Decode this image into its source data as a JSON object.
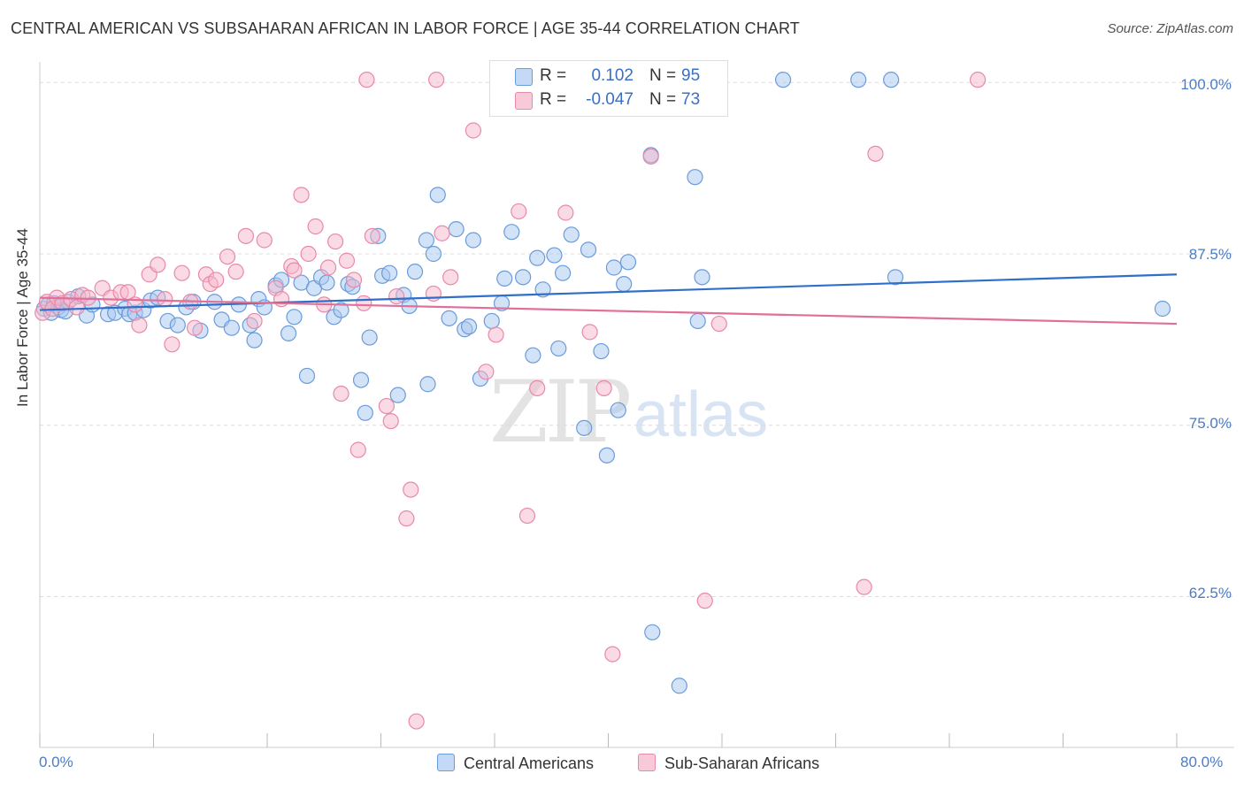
{
  "title": "CENTRAL AMERICAN VS SUBSAHARAN AFRICAN IN LABOR FORCE | AGE 35-44 CORRELATION CHART",
  "source": "Source: ZipAtlas.com",
  "watermark": {
    "zip": "ZIP",
    "atlas": "atlas"
  },
  "legend_top": {
    "r_label": "R =",
    "n_label": "N =",
    "rows": [
      {
        "r": "0.102",
        "n": "95"
      },
      {
        "r": "-0.047",
        "n": "73"
      }
    ]
  },
  "colors": {
    "blue_fill": "#a8c8ef",
    "blue_stroke": "#6a9bdc",
    "blue_line": "#2f6fc9",
    "pink_fill": "#f5b8cc",
    "pink_stroke": "#e889a8",
    "pink_line": "#e0709a",
    "grid": "#dcdcdc",
    "axis_text": "#4a7cc7"
  },
  "chart_data": {
    "type": "scatter",
    "title": "CENTRAL AMERICAN VS SUBSAHARAN AFRICAN IN LABOR FORCE | AGE 35-44 CORRELATION CHART",
    "xlabel": "",
    "ylabel": "In Labor Force | Age 35-44",
    "xlim": [
      0,
      80
    ],
    "ylim": [
      51.5,
      101.5
    ],
    "x_tick_labels": [
      "0.0%",
      "80.0%"
    ],
    "y_ticks": [
      {
        "value": 100,
        "label": "100.0%"
      },
      {
        "value": 87.5,
        "label": "87.5%"
      },
      {
        "value": 75,
        "label": "75.0%"
      },
      {
        "value": 62.5,
        "label": "62.5%"
      }
    ],
    "series": [
      {
        "name": "Central Americans",
        "r": 0.102,
        "n": 95,
        "trend": {
          "x": [
            0,
            80
          ],
          "y": [
            83.4,
            86.0
          ]
        },
        "points": [
          [
            0.3,
            83.5
          ],
          [
            0.6,
            83.8
          ],
          [
            0.8,
            83.2
          ],
          [
            1.0,
            83.9
          ],
          [
            1.3,
            83.6
          ],
          [
            1.5,
            83.4
          ],
          [
            1.8,
            83.3
          ],
          [
            2.0,
            84.0
          ],
          [
            2.7,
            84.4
          ],
          [
            3.3,
            83.0
          ],
          [
            3.7,
            83.8
          ],
          [
            4.8,
            83.1
          ],
          [
            5.3,
            83.2
          ],
          [
            6.0,
            83.5
          ],
          [
            6.3,
            83.1
          ],
          [
            6.7,
            83.2
          ],
          [
            7.3,
            83.4
          ],
          [
            7.8,
            84.1
          ],
          [
            8.3,
            84.3
          ],
          [
            9.0,
            82.6
          ],
          [
            9.7,
            82.3
          ],
          [
            10.3,
            83.6
          ],
          [
            10.8,
            84.0
          ],
          [
            11.3,
            81.9
          ],
          [
            12.3,
            84.0
          ],
          [
            12.8,
            82.7
          ],
          [
            13.5,
            82.1
          ],
          [
            14.0,
            83.8
          ],
          [
            14.8,
            82.3
          ],
          [
            15.1,
            81.2
          ],
          [
            15.4,
            84.2
          ],
          [
            15.8,
            83.6
          ],
          [
            16.6,
            85.2
          ],
          [
            17.0,
            85.6
          ],
          [
            17.5,
            81.7
          ],
          [
            17.9,
            82.9
          ],
          [
            18.4,
            85.4
          ],
          [
            18.8,
            78.6
          ],
          [
            19.3,
            85.0
          ],
          [
            19.8,
            85.8
          ],
          [
            20.2,
            85.4
          ],
          [
            20.7,
            82.9
          ],
          [
            21.2,
            83.4
          ],
          [
            21.7,
            85.3
          ],
          [
            22.0,
            85.1
          ],
          [
            22.6,
            78.3
          ],
          [
            22.9,
            75.9
          ],
          [
            23.2,
            81.4
          ],
          [
            23.8,
            88.8
          ],
          [
            24.1,
            85.9
          ],
          [
            24.6,
            86.1
          ],
          [
            25.2,
            77.2
          ],
          [
            25.6,
            84.5
          ],
          [
            26.0,
            83.7
          ],
          [
            26.4,
            86.2
          ],
          [
            27.2,
            88.5
          ],
          [
            27.3,
            78.0
          ],
          [
            27.7,
            87.5
          ],
          [
            28.0,
            91.8
          ],
          [
            28.8,
            82.8
          ],
          [
            29.3,
            89.3
          ],
          [
            29.9,
            82.0
          ],
          [
            30.2,
            82.2
          ],
          [
            30.5,
            88.5
          ],
          [
            31.0,
            78.4
          ],
          [
            31.8,
            82.6
          ],
          [
            32.5,
            83.9
          ],
          [
            32.7,
            85.7
          ],
          [
            33.2,
            89.1
          ],
          [
            34.0,
            85.8
          ],
          [
            34.7,
            80.1
          ],
          [
            35.0,
            87.2
          ],
          [
            35.4,
            84.9
          ],
          [
            36.2,
            87.4
          ],
          [
            36.5,
            80.6
          ],
          [
            36.8,
            86.1
          ],
          [
            37.4,
            88.9
          ],
          [
            38.3,
            74.8
          ],
          [
            38.6,
            87.8
          ],
          [
            39.5,
            80.4
          ],
          [
            39.9,
            72.8
          ],
          [
            40.4,
            86.5
          ],
          [
            40.7,
            76.1
          ],
          [
            41.1,
            85.3
          ],
          [
            41.4,
            86.9
          ],
          [
            43.0,
            94.7
          ],
          [
            46.1,
            93.1
          ],
          [
            46.3,
            82.6
          ],
          [
            46.6,
            85.8
          ],
          [
            52.3,
            100.2
          ],
          [
            57.6,
            100.2
          ],
          [
            59.9,
            100.2
          ],
          [
            60.2,
            85.8
          ],
          [
            43.1,
            59.9
          ],
          [
            45.0,
            56.0
          ],
          [
            79.0,
            83.5
          ]
        ]
      },
      {
        "name": "Sub-Saharan Africans",
        "r": -0.047,
        "n": 73,
        "trend": {
          "x": [
            0,
            80
          ],
          "y": [
            84.3,
            82.4
          ]
        },
        "points": [
          [
            0.2,
            83.2
          ],
          [
            0.5,
            84.0
          ],
          [
            0.9,
            83.5
          ],
          [
            1.2,
            84.3
          ],
          [
            1.6,
            83.9
          ],
          [
            2.2,
            84.2
          ],
          [
            2.6,
            83.6
          ],
          [
            3.0,
            84.5
          ],
          [
            3.4,
            84.3
          ],
          [
            4.4,
            85.0
          ],
          [
            5.0,
            84.3
          ],
          [
            5.7,
            84.7
          ],
          [
            6.2,
            84.7
          ],
          [
            6.7,
            83.8
          ],
          [
            7.0,
            82.3
          ],
          [
            7.7,
            86.0
          ],
          [
            8.3,
            86.7
          ],
          [
            8.8,
            84.2
          ],
          [
            9.3,
            80.9
          ],
          [
            10.0,
            86.1
          ],
          [
            10.6,
            84.0
          ],
          [
            10.9,
            82.1
          ],
          [
            11.7,
            86.0
          ],
          [
            12.0,
            85.3
          ],
          [
            12.4,
            85.6
          ],
          [
            13.2,
            87.3
          ],
          [
            13.8,
            86.2
          ],
          [
            14.5,
            88.8
          ],
          [
            15.1,
            82.6
          ],
          [
            15.8,
            88.5
          ],
          [
            16.6,
            85.0
          ],
          [
            17.0,
            84.2
          ],
          [
            17.7,
            86.6
          ],
          [
            17.9,
            86.3
          ],
          [
            18.4,
            91.8
          ],
          [
            18.9,
            87.5
          ],
          [
            19.4,
            89.5
          ],
          [
            20.0,
            83.8
          ],
          [
            20.3,
            86.5
          ],
          [
            20.8,
            88.4
          ],
          [
            21.2,
            77.3
          ],
          [
            21.6,
            87.0
          ],
          [
            22.1,
            85.6
          ],
          [
            22.4,
            73.2
          ],
          [
            22.8,
            83.9
          ],
          [
            23.4,
            88.8
          ],
          [
            24.4,
            76.4
          ],
          [
            24.7,
            75.3
          ],
          [
            25.1,
            84.4
          ],
          [
            25.8,
            68.2
          ],
          [
            26.1,
            70.3
          ],
          [
            26.5,
            53.4
          ],
          [
            27.7,
            84.6
          ],
          [
            28.3,
            89.0
          ],
          [
            28.9,
            85.8
          ],
          [
            30.5,
            96.5
          ],
          [
            31.4,
            78.9
          ],
          [
            32.1,
            81.6
          ],
          [
            33.7,
            90.6
          ],
          [
            34.3,
            68.4
          ],
          [
            35.0,
            77.7
          ],
          [
            37.0,
            90.5
          ],
          [
            38.7,
            81.8
          ],
          [
            39.7,
            77.7
          ],
          [
            40.3,
            58.3
          ],
          [
            43.0,
            94.6
          ],
          [
            46.8,
            62.2
          ],
          [
            47.8,
            82.4
          ],
          [
            58.0,
            63.2
          ],
          [
            58.8,
            94.8
          ],
          [
            66.0,
            100.2
          ],
          [
            23.0,
            100.2
          ],
          [
            27.9,
            100.2
          ]
        ]
      }
    ]
  },
  "legend_bottom": [
    {
      "label": "Central Americans"
    },
    {
      "label": "Sub-Saharan Africans"
    }
  ]
}
